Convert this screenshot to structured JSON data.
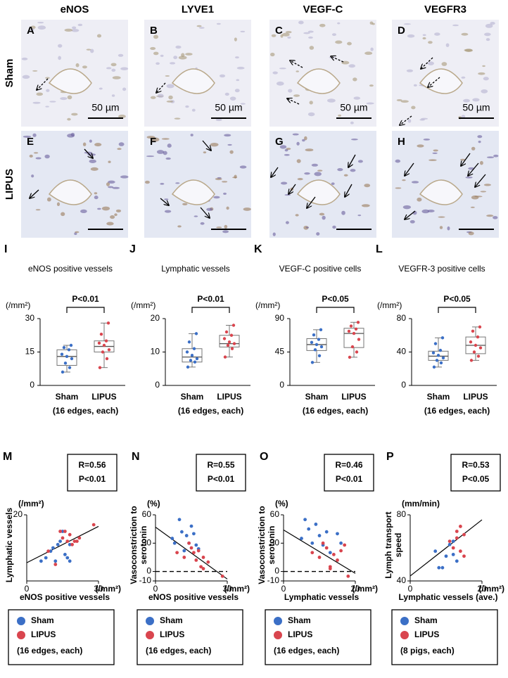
{
  "micrographs": {
    "columns": [
      "eNOS",
      "LYVE1",
      "VEGF-C",
      "VEGFR3"
    ],
    "rows": [
      "Sham",
      "LIPUS"
    ],
    "panels": [
      [
        "A",
        "B",
        "C",
        "D"
      ],
      [
        "E",
        "F",
        "G",
        "H"
      ]
    ],
    "scale_bar": "50 µm"
  },
  "chart_data": [
    {
      "type": "box",
      "panel": "I",
      "title": "eNOS positive vessels",
      "annotation": "P<0.01",
      "y_unit": "(/mm²)",
      "categories": [
        "Sham",
        "LIPUS"
      ],
      "xlabel": "(16 edges, each)",
      "ylim": [
        0,
        30
      ],
      "yticks": [
        0,
        15,
        30
      ],
      "boxes": [
        {
          "color": "#3b6fc6",
          "min": 6,
          "q1": 9,
          "median": 13,
          "q3": 16,
          "max": 18,
          "points": [
            6,
            8,
            10,
            12,
            13,
            14,
            16,
            17,
            18
          ]
        },
        {
          "color": "#d9454e",
          "min": 8,
          "q1": 15,
          "median": 17.5,
          "q3": 20,
          "max": 28,
          "points": [
            8,
            12,
            15,
            16,
            18,
            19,
            20,
            23,
            28
          ]
        }
      ]
    },
    {
      "type": "box",
      "panel": "J",
      "title": "Lymphatic vessels",
      "annotation": "P<0.01",
      "y_unit": "(/mm²)",
      "categories": [
        "Sham",
        "LIPUS"
      ],
      "xlabel": "(16 edges, each)",
      "ylim": [
        0,
        20
      ],
      "yticks": [
        0,
        10,
        20
      ],
      "boxes": [
        {
          "color": "#3b6fc6",
          "min": 5.5,
          "q1": 7,
          "median": 8.5,
          "q3": 11,
          "max": 15.5,
          "points": [
            5.5,
            7,
            7.5,
            8,
            9,
            10,
            11,
            13,
            15.5
          ]
        },
        {
          "color": "#d9454e",
          "min": 8.5,
          "q1": 11.5,
          "median": 12.5,
          "q3": 15,
          "max": 18,
          "points": [
            8.5,
            11,
            12,
            12.5,
            13,
            14,
            15,
            16,
            18
          ]
        }
      ]
    },
    {
      "type": "box",
      "panel": "K",
      "title": "VEGF-C positive cells",
      "annotation": "P<0.05",
      "y_unit": "(/mm²)",
      "categories": [
        "Sham",
        "LIPUS"
      ],
      "xlabel": "(16 edges, each)",
      "ylim": [
        0,
        90
      ],
      "yticks": [
        0,
        45,
        90
      ],
      "boxes": [
        {
          "color": "#3b6fc6",
          "min": 31,
          "q1": 47,
          "median": 55,
          "q3": 63,
          "max": 75,
          "points": [
            31,
            40,
            48,
            52,
            55,
            58,
            62,
            68,
            75
          ]
        },
        {
          "color": "#d9454e",
          "min": 38,
          "q1": 51,
          "median": 70,
          "q3": 77,
          "max": 85,
          "points": [
            38,
            45,
            52,
            62,
            70,
            73,
            76,
            80,
            85
          ]
        }
      ]
    },
    {
      "type": "box",
      "panel": "L",
      "title": "VEGFR-3 positive cells",
      "annotation": "P<0.05",
      "y_unit": "(/mm²)",
      "categories": [
        "Sham",
        "LIPUS"
      ],
      "xlabel": "(16 edges, each)",
      "ylim": [
        0,
        80
      ],
      "yticks": [
        0,
        40,
        80
      ],
      "boxes": [
        {
          "color": "#3b6fc6",
          "min": 22,
          "q1": 30,
          "median": 35,
          "q3": 41,
          "max": 57,
          "points": [
            22,
            27,
            30,
            33,
            36,
            39,
            42,
            50,
            57
          ]
        },
        {
          "color": "#d9454e",
          "min": 30,
          "q1": 38,
          "median": 48,
          "q3": 58,
          "max": 70,
          "points": [
            30,
            35,
            40,
            45,
            48,
            52,
            58,
            65,
            70
          ]
        }
      ]
    },
    {
      "type": "scatter",
      "panel": "M",
      "annotation": [
        "R=0.56",
        "P<0.01"
      ],
      "ylabel": [
        "Lymphatic vessels"
      ],
      "y_unit": "(/mm²)",
      "xlabel": "eNOS positive vessels",
      "x_unit": "(/mm²)",
      "xlim": [
        0,
        30
      ],
      "ylim": [
        0,
        20
      ],
      "xticks": [
        0,
        30
      ],
      "yticks": [
        20
      ],
      "fit": {
        "x": [
          0,
          30
        ],
        "y": [
          5.5,
          16.5
        ]
      },
      "series": [
        {
          "name": "Sham",
          "color": "#3b6fc6",
          "x": [
            6,
            8,
            10,
            11,
            12,
            13,
            14,
            15,
            16,
            17,
            18,
            18
          ],
          "y": [
            6,
            7,
            9,
            10,
            6,
            11,
            12,
            15,
            8,
            7,
            6,
            11
          ]
        },
        {
          "name": "LIPUS",
          "color": "#d9454e",
          "x": [
            9,
            12,
            14,
            15,
            16,
            17,
            18,
            19,
            20,
            21,
            22,
            28
          ],
          "y": [
            9,
            5,
            15,
            13,
            15,
            12,
            14,
            11,
            12,
            12,
            13,
            17
          ]
        }
      ],
      "legend_note": "(16 edges, each)"
    },
    {
      "type": "scatter",
      "panel": "N",
      "annotation": [
        "R=0.55",
        "P<0.01"
      ],
      "ylabel": [
        "Vasoconstriction to",
        "serotonin"
      ],
      "y_unit": "(%)",
      "xlabel": "eNOS positive vessels",
      "x_unit": "(/mm²)",
      "xlim": [
        0,
        30
      ],
      "ylim": [
        -10,
        60
      ],
      "xticks": [
        0,
        30
      ],
      "yticks": [
        -10,
        0,
        30,
        60
      ],
      "reference_line": 0,
      "fit": {
        "x": [
          0,
          30
        ],
        "y": [
          47,
          -8
        ]
      },
      "series": [
        {
          "name": "Sham",
          "color": "#3b6fc6",
          "x": [
            7,
            8,
            10,
            11,
            12,
            13,
            14,
            15,
            16,
            17,
            18
          ],
          "y": [
            35,
            30,
            55,
            42,
            22,
            38,
            30,
            48,
            40,
            28,
            24
          ]
        },
        {
          "name": "LIPUS",
          "color": "#d9454e",
          "x": [
            9,
            12,
            14,
            15,
            16,
            17,
            18,
            19,
            20,
            20,
            22,
            28
          ],
          "y": [
            20,
            15,
            30,
            25,
            20,
            12,
            22,
            5,
            3,
            15,
            10,
            -5
          ]
        }
      ],
      "legend_note": "(16 edges, each)"
    },
    {
      "type": "scatter",
      "panel": "O",
      "annotation": [
        "R=0.46",
        "P<0.01"
      ],
      "ylabel": [
        "Vasoconstriction to",
        "serotonin"
      ],
      "y_unit": "(%)",
      "xlabel": "Lymphatic vessels",
      "x_unit": "(/mm²)",
      "xlim": [
        0,
        20
      ],
      "ylim": [
        -10,
        60
      ],
      "xticks": [
        0,
        20
      ],
      "yticks": [
        -10,
        0,
        30,
        60
      ],
      "reference_line": 0,
      "fit": {
        "x": [
          0,
          20
        ],
        "y": [
          44,
          -2
        ]
      },
      "series": [
        {
          "name": "Sham",
          "color": "#3b6fc6",
          "x": [
            5,
            6,
            7,
            8,
            9,
            10,
            11,
            12,
            13,
            15,
            16
          ],
          "y": [
            35,
            55,
            45,
            30,
            50,
            38,
            28,
            42,
            20,
            40,
            30
          ]
        },
        {
          "name": "LIPUS",
          "color": "#d9454e",
          "x": [
            8,
            10,
            11,
            12,
            13,
            13,
            14,
            15,
            16,
            17,
            18
          ],
          "y": [
            20,
            15,
            30,
            25,
            5,
            3,
            18,
            12,
            22,
            28,
            -5
          ]
        }
      ],
      "legend_note": "(16 edges, each)"
    },
    {
      "type": "scatter",
      "panel": "P",
      "annotation": [
        "R=0.53",
        "P<0.05"
      ],
      "ylabel": [
        "Lymph transport",
        "speed"
      ],
      "y_unit": "(mm/min)",
      "xlabel": "Lymphatic vessels (ave.)",
      "x_unit": "(/mm²)",
      "xlim": [
        0,
        20
      ],
      "ylim": [
        40,
        80
      ],
      "xticks": [
        0,
        20
      ],
      "yticks": [
        40,
        80
      ],
      "fit": {
        "x": [
          0,
          20
        ],
        "y": [
          43,
          77
        ]
      },
      "series": [
        {
          "name": "Sham",
          "color": "#3b6fc6",
          "x": [
            7,
            8,
            9,
            10,
            11,
            12,
            12,
            13
          ],
          "y": [
            58,
            48,
            48,
            55,
            62,
            56,
            64,
            52
          ]
        },
        {
          "name": "LIPUS",
          "color": "#d9454e",
          "x": [
            11,
            12,
            13,
            13,
            14,
            14,
            15,
            15
          ],
          "y": [
            64,
            60,
            70,
            66,
            73,
            58,
            68,
            55
          ]
        }
      ],
      "legend_note": "(8 pigs, each)"
    }
  ]
}
